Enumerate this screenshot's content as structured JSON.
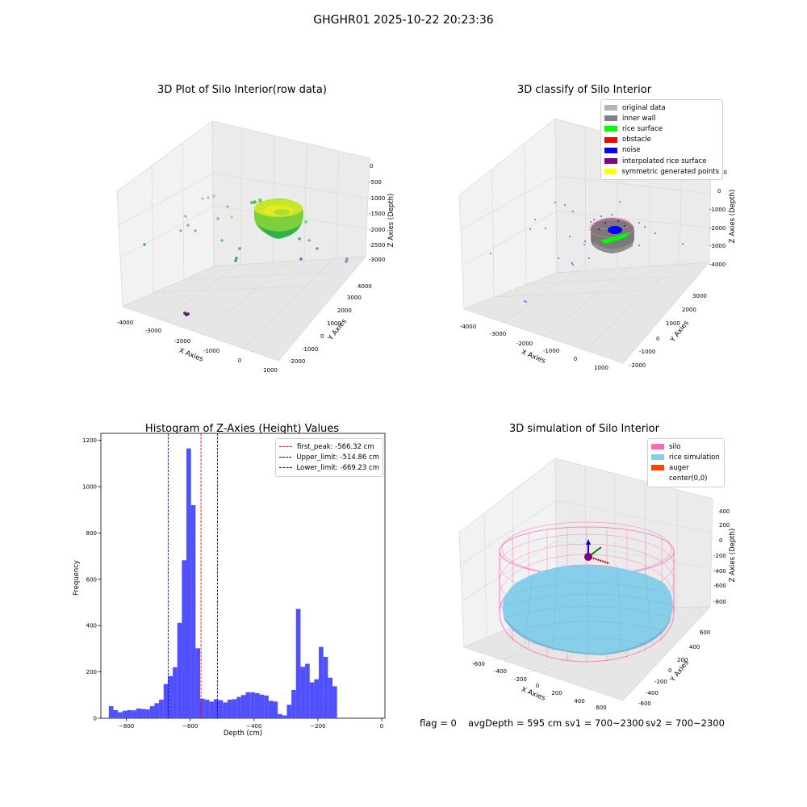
{
  "figure": {
    "suptitle": "GHGHR01 2025-10-22 20:23:36",
    "footer": {
      "flag": "flag = 0",
      "avg_depth": "avgDepth = 595 cm",
      "sv1": "sv1 = 700~2300",
      "sv2": "sv2 = 700~2300"
    }
  },
  "chart_data": [
    {
      "type": "scatter",
      "title": "3D Plot of Silo Interior(row data)",
      "xlabel": "X Axies",
      "ylabel": "Y Axies",
      "zlabel": "Z Axies (Depth)",
      "x_ticks": [
        "-4000",
        "-3000",
        "-2000",
        "-1000",
        "0",
        "1000"
      ],
      "y_ticks": [
        "-2000",
        "-1000",
        "0",
        "1000",
        "2000",
        "3000",
        "4000"
      ],
      "z_ticks": [
        "0",
        "-500",
        "-1000",
        "-1500",
        "-2000",
        "-2500",
        "-3000"
      ],
      "colormap": [
        "#440154",
        "#3b528b",
        "#21918c",
        "#5ec962",
        "#fde725"
      ],
      "main_cluster": {
        "center_x": 0,
        "center_y": 0,
        "radius": 700,
        "z": -600
      }
    },
    {
      "type": "scatter",
      "title": "3D classify of Silo Interior",
      "xlabel": "X Axies",
      "ylabel": "Y Axies",
      "zlabel": "Z Axies (Depth)",
      "x_ticks": [
        "-4000",
        "-3000",
        "-2000",
        "-1000",
        "0",
        "1000"
      ],
      "y_ticks": [
        "-2000",
        "-1000",
        "0",
        "1000",
        "2000",
        "3000"
      ],
      "z_ticks": [
        "1000",
        "0",
        "-1000",
        "-2000",
        "-3000",
        "-4000"
      ],
      "legend": [
        {
          "label": "original data",
          "color": "#b3b3b3"
        },
        {
          "label": "inner wall",
          "color": "#808080"
        },
        {
          "label": "rice surface",
          "color": "#00ff00"
        },
        {
          "label": "obstacle",
          "color": "#ff0000"
        },
        {
          "label": "noise",
          "color": "#0000ff"
        },
        {
          "label": "interpolated rice surface",
          "color": "#800080"
        },
        {
          "label": "symmetric generated points",
          "color": "#ffff00"
        }
      ]
    },
    {
      "type": "bar",
      "title": "Histogram of Z-Axies (Height) Values",
      "xlabel": "Depth (cm)",
      "ylabel": "Frequency",
      "color": "#5050ff",
      "xlim": [
        -880,
        10
      ],
      "ylim": [
        0,
        1230
      ],
      "x_ticks": [
        -800,
        -600,
        -400,
        -200,
        0
      ],
      "y_ticks": [
        0,
        200,
        400,
        600,
        800,
        1000,
        1200
      ],
      "bin_start": -855,
      "bin_width": 14.3,
      "values": [
        52,
        35,
        26,
        32,
        35,
        34,
        42,
        40,
        38,
        52,
        65,
        80,
        148,
        182,
        220,
        412,
        682,
        1165,
        920,
        302,
        85,
        80,
        72,
        82,
        78,
        68,
        80,
        82,
        92,
        100,
        112,
        112,
        108,
        102,
        98,
        75,
        72,
        18,
        12,
        58,
        122,
        472,
        222,
        235,
        155,
        168,
        308,
        265,
        175,
        138
      ],
      "vlines": [
        {
          "label": "first_peak: -566.32 cm",
          "x": -566.32,
          "color": "#ff0000"
        },
        {
          "label": "Upper_limit: -514.86 cm",
          "x": -514.86,
          "color": "#0000aa"
        },
        {
          "label": "Lower_limit: -669.23 cm",
          "x": -669.23,
          "color": "#0000aa"
        }
      ]
    },
    {
      "type": "scatter",
      "title": "3D simulation of Silo Interior",
      "xlabel": "X Axies",
      "ylabel": "Y Axies",
      "zlabel": "Z Axies (Depth)",
      "x_ticks": [
        "-600",
        "-400",
        "-200",
        "0",
        "200",
        "400",
        "600"
      ],
      "y_ticks": [
        "-600",
        "-400",
        "-200",
        "0",
        "200",
        "400",
        "600"
      ],
      "z_ticks": [
        "400",
        "200",
        "0",
        "-200",
        "-400",
        "-600",
        "-800"
      ],
      "legend": [
        {
          "label": "silo",
          "color": "#ff69b4"
        },
        {
          "label": "rice simulation",
          "color": "#87ceeb"
        },
        {
          "label": "auger",
          "color": "#ff4500"
        },
        {
          "label": "center(0,0)",
          "color": ""
        }
      ]
    }
  ]
}
